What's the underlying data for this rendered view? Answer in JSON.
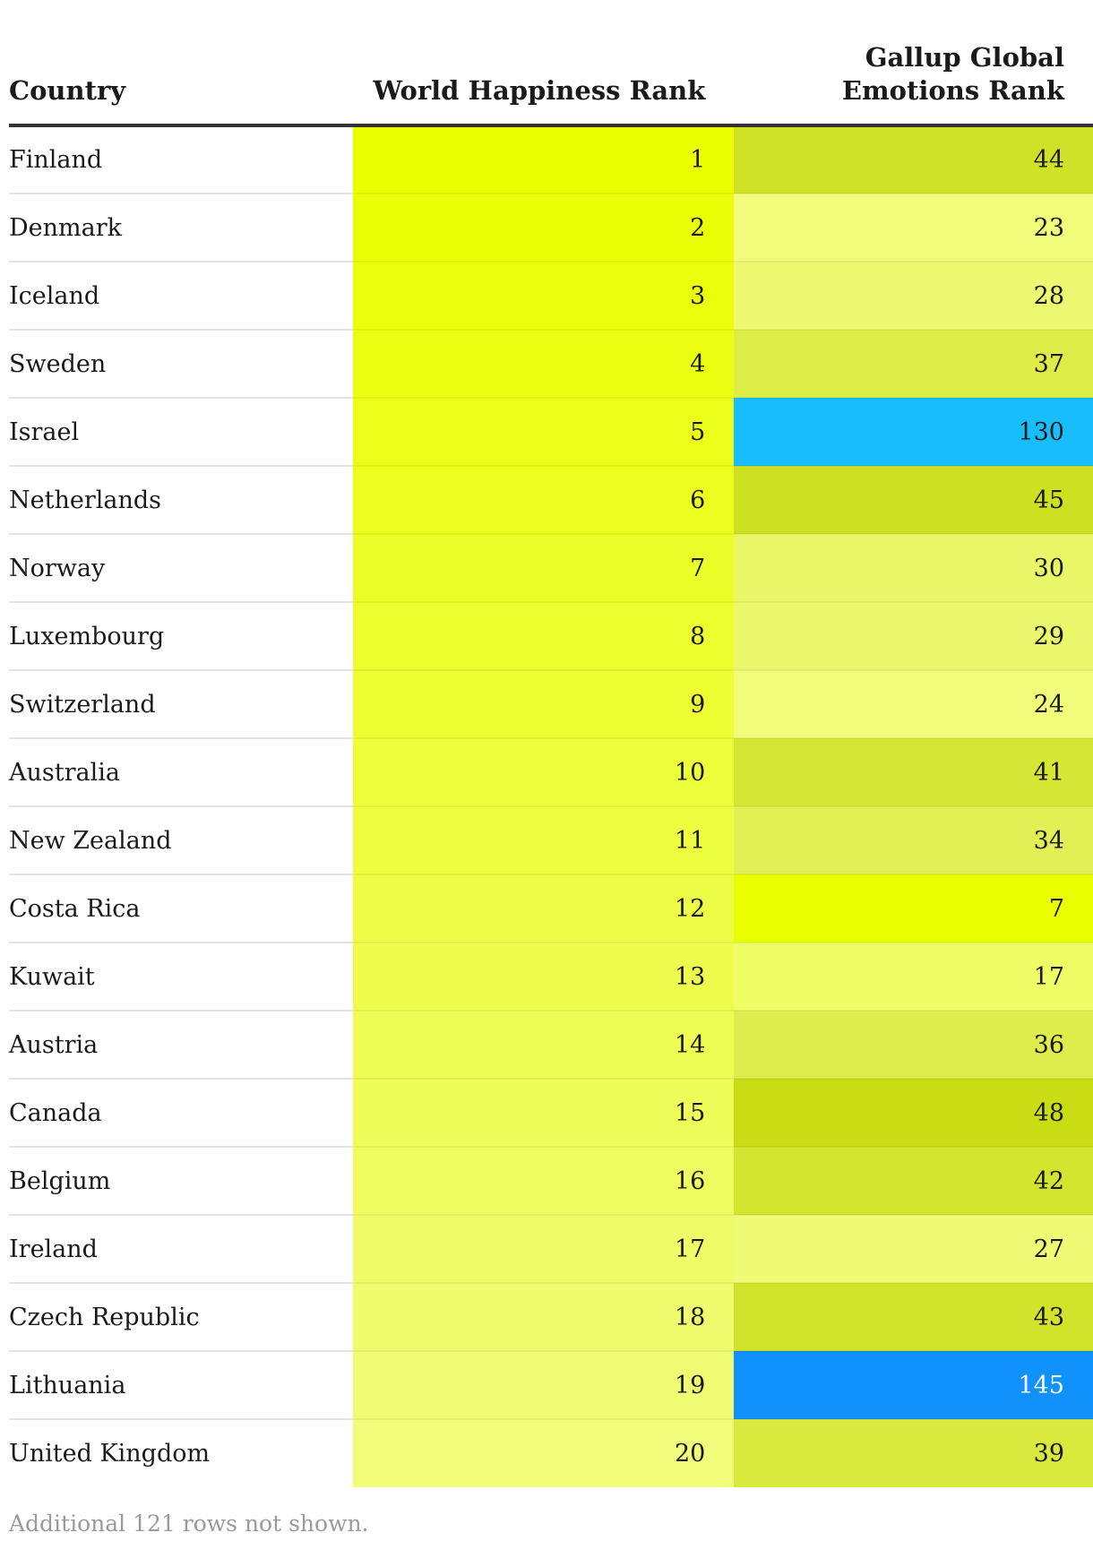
{
  "chart_data": {
    "type": "table",
    "columns": [
      "Country",
      "World Happiness Rank",
      "Gallup Global Emotions Rank"
    ],
    "rows": [
      {
        "country": "Finland",
        "whr": 1,
        "gallup": 44
      },
      {
        "country": "Denmark",
        "whr": 2,
        "gallup": 23
      },
      {
        "country": "Iceland",
        "whr": 3,
        "gallup": 28
      },
      {
        "country": "Sweden",
        "whr": 4,
        "gallup": 37
      },
      {
        "country": "Israel",
        "whr": 5,
        "gallup": 130
      },
      {
        "country": "Netherlands",
        "whr": 6,
        "gallup": 45
      },
      {
        "country": "Norway",
        "whr": 7,
        "gallup": 30
      },
      {
        "country": "Luxembourg",
        "whr": 8,
        "gallup": 29
      },
      {
        "country": "Switzerland",
        "whr": 9,
        "gallup": 24
      },
      {
        "country": "Australia",
        "whr": 10,
        "gallup": 41
      },
      {
        "country": "New Zealand",
        "whr": 11,
        "gallup": 34
      },
      {
        "country": "Costa Rica",
        "whr": 12,
        "gallup": 7
      },
      {
        "country": "Kuwait",
        "whr": 13,
        "gallup": 17
      },
      {
        "country": "Austria",
        "whr": 14,
        "gallup": 36
      },
      {
        "country": "Canada",
        "whr": 15,
        "gallup": 48
      },
      {
        "country": "Belgium",
        "whr": 16,
        "gallup": 42
      },
      {
        "country": "Ireland",
        "whr": 17,
        "gallup": 27
      },
      {
        "country": "Czech Republic",
        "whr": 18,
        "gallup": 43
      },
      {
        "country": "Lithuania",
        "whr": 19,
        "gallup": 145
      },
      {
        "country": "United Kingdom",
        "whr": 20,
        "gallup": 39
      }
    ],
    "footnote": "Additional 121 rows not shown.",
    "color_scale": {
      "low": "#eaff00",
      "light": "#f0fc7a",
      "mid": "#c9dc14",
      "high": "#18bdfd",
      "highest": "#1191fc"
    }
  }
}
